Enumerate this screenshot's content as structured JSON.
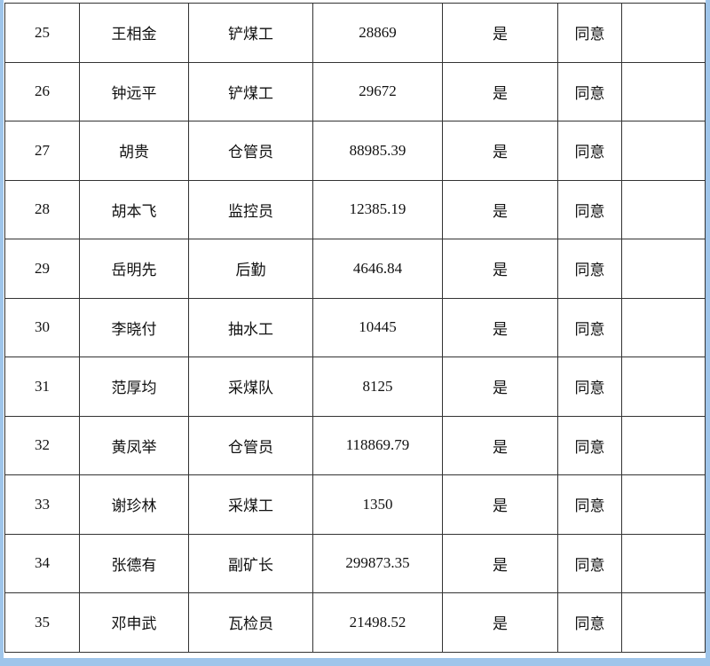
{
  "table": {
    "rows": [
      {
        "no": "25",
        "name": "王相金",
        "position": "铲煤工",
        "amount": "28869",
        "flag": "是",
        "opinion": "同意",
        "remark": ""
      },
      {
        "no": "26",
        "name": "钟远平",
        "position": "铲煤工",
        "amount": "29672",
        "flag": "是",
        "opinion": "同意",
        "remark": ""
      },
      {
        "no": "27",
        "name": "胡贵",
        "position": "仓管员",
        "amount": "88985.39",
        "flag": "是",
        "opinion": "同意",
        "remark": ""
      },
      {
        "no": "28",
        "name": "胡本飞",
        "position": "监控员",
        "amount": "12385.19",
        "flag": "是",
        "opinion": "同意",
        "remark": ""
      },
      {
        "no": "29",
        "name": "岳明先",
        "position": "后勤",
        "amount": "4646.84",
        "flag": "是",
        "opinion": "同意",
        "remark": ""
      },
      {
        "no": "30",
        "name": "李晓付",
        "position": "抽水工",
        "amount": "10445",
        "flag": "是",
        "opinion": "同意",
        "remark": ""
      },
      {
        "no": "31",
        "name": "范厚均",
        "position": "采煤队",
        "amount": "8125",
        "flag": "是",
        "opinion": "同意",
        "remark": ""
      },
      {
        "no": "32",
        "name": "黄凤举",
        "position": "仓管员",
        "amount": "118869.79",
        "flag": "是",
        "opinion": "同意",
        "remark": ""
      },
      {
        "no": "33",
        "name": "谢珍林",
        "position": "采煤工",
        "amount": "1350",
        "flag": "是",
        "opinion": "同意",
        "remark": ""
      },
      {
        "no": "34",
        "name": "张德有",
        "position": "副矿长",
        "amount": "299873.35",
        "flag": "是",
        "opinion": "同意",
        "remark": ""
      },
      {
        "no": "35",
        "name": "邓申武",
        "position": "瓦检员",
        "amount": "21498.52",
        "flag": "是",
        "opinion": "同意",
        "remark": ""
      }
    ]
  }
}
